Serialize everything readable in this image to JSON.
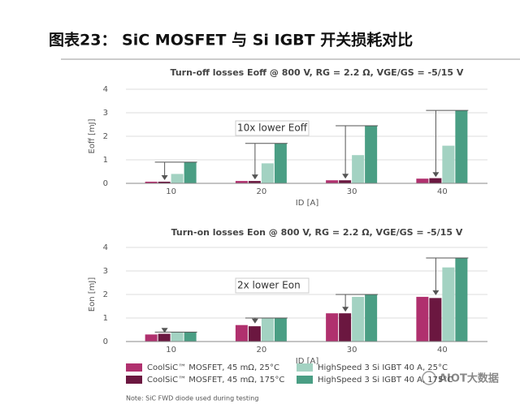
{
  "header": {
    "title": "图表23： SiC MOSFET 与 Si IGBT 开关损耗对比"
  },
  "chart_data": [
    {
      "type": "bar",
      "title": "Turn-off losses Eoff @ 800 V, RG = 2.2 Ω, VGE/GS = -5/15 V",
      "x_label": "ID [A]",
      "y_label": "Eoff [mJ]",
      "annotation": "10x lower Eoff",
      "categories": [
        "10",
        "20",
        "30",
        "40"
      ],
      "series": [
        {
          "color": "#b0306e",
          "values": [
            0.07,
            0.1,
            0.13,
            0.2
          ]
        },
        {
          "color": "#6b1740",
          "values": [
            0.07,
            0.1,
            0.13,
            0.22
          ]
        },
        {
          "color": "#a3d2c2",
          "values": [
            0.4,
            0.85,
            1.2,
            1.6
          ]
        },
        {
          "color": "#4a9e84",
          "values": [
            0.9,
            1.7,
            2.45,
            3.1
          ]
        }
      ],
      "ylim": [
        0,
        4
      ],
      "yticks": [
        0,
        1,
        2,
        3,
        4
      ],
      "grid": true
    },
    {
      "type": "bar",
      "title": "Turn-on losses Eon @ 800 V, RG = 2.2 Ω, VGE/GS = -5/15 V",
      "x_label": "ID [A]",
      "y_label": "Eon [mJ]",
      "annotation": "2x lower Eon",
      "categories": [
        "10",
        "20",
        "30",
        "40"
      ],
      "series": [
        {
          "name": "CoolSiC™ MOSFET, 45 mΩ, 25°C",
          "color": "#b0306e",
          "values": [
            0.3,
            0.7,
            1.2,
            1.9
          ]
        },
        {
          "name": "CoolSiC™ MOSFET, 45 mΩ, 175°C",
          "color": "#6b1740",
          "values": [
            0.33,
            0.65,
            1.2,
            1.85
          ]
        },
        {
          "name": "HighSpeed 3 Si IGBT 40 A, 25°C",
          "color": "#a3d2c2",
          "values": [
            0.4,
            1.0,
            1.9,
            3.15
          ]
        },
        {
          "name": "HighSpeed 3 Si IGBT 40 A, 175°C",
          "color": "#4a9e84",
          "values": [
            0.4,
            1.0,
            2.0,
            3.55
          ]
        }
      ],
      "ylim": [
        0,
        4
      ],
      "yticks": [
        0,
        1,
        2,
        3,
        4
      ],
      "grid": true
    }
  ],
  "note": "Note: SiC FWD diode used during testing",
  "watermark": "AIOT大数据"
}
